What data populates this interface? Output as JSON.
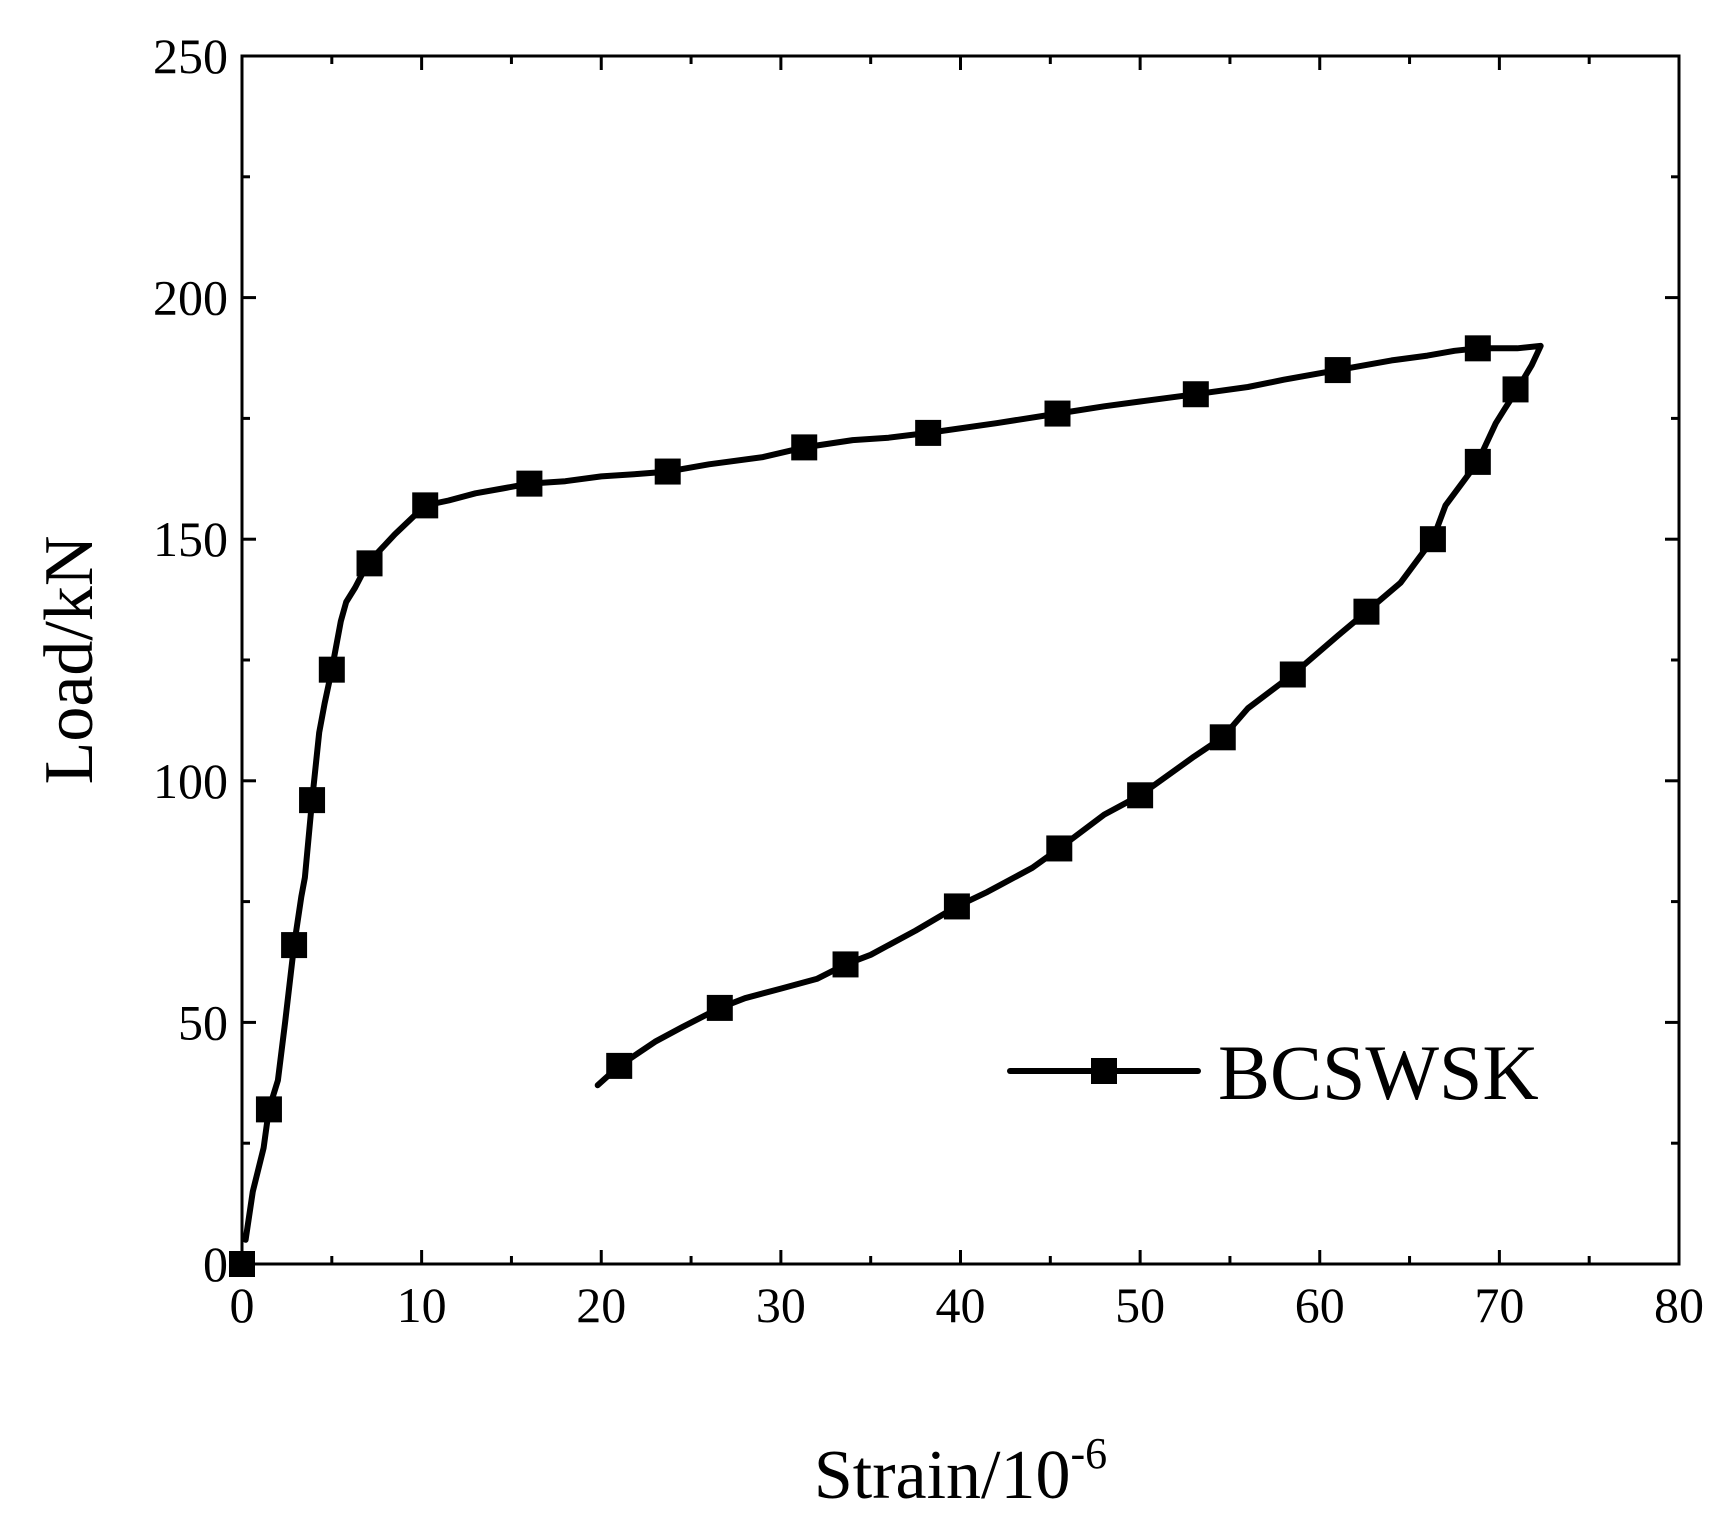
{
  "chart_data": {
    "type": "line",
    "title": "",
    "xlabel": "Strain/10",
    "xlabel_superscript": "-6",
    "ylabel": "Load/kN",
    "xlim": [
      0,
      80
    ],
    "ylim": [
      0,
      250
    ],
    "xticks": [
      "0",
      "10",
      "20",
      "30",
      "40",
      "50",
      "60",
      "70",
      "80"
    ],
    "yticks": [
      "0",
      "50",
      "100",
      "150",
      "200",
      "250"
    ],
    "grid": false,
    "legend_position": "bottom-right",
    "series": [
      {
        "name": "BCSWSK",
        "color": "#000000",
        "marker": "square",
        "line": [
          [
            0.2,
            5
          ],
          [
            0.6,
            15
          ],
          [
            1.2,
            24
          ],
          [
            1.5,
            32
          ],
          [
            2.0,
            38
          ],
          [
            2.4,
            50
          ],
          [
            2.9,
            66
          ],
          [
            3.3,
            76
          ],
          [
            3.5,
            80
          ],
          [
            3.9,
            96
          ],
          [
            4.3,
            110
          ],
          [
            4.6,
            116
          ],
          [
            5.0,
            123
          ],
          [
            5.5,
            133
          ],
          [
            5.8,
            137
          ],
          [
            6.3,
            140
          ],
          [
            7.0,
            145
          ],
          [
            7.5,
            147
          ],
          [
            8.5,
            151
          ],
          [
            10.2,
            157
          ],
          [
            11.5,
            158
          ],
          [
            13.0,
            159.5
          ],
          [
            14.5,
            160.5
          ],
          [
            16.0,
            161.5
          ],
          [
            18.0,
            162
          ],
          [
            20.0,
            163
          ],
          [
            22.0,
            163.5
          ],
          [
            23.7,
            164
          ],
          [
            26.0,
            165.5
          ],
          [
            29.0,
            167
          ],
          [
            31.3,
            169
          ],
          [
            34.0,
            170.5
          ],
          [
            36.0,
            171
          ],
          [
            38.2,
            172
          ],
          [
            42.0,
            174
          ],
          [
            45.4,
            176
          ],
          [
            48.0,
            177.5
          ],
          [
            50.0,
            178.5
          ],
          [
            53.1,
            180
          ],
          [
            56.0,
            181.5
          ],
          [
            58.0,
            183
          ],
          [
            61.0,
            185
          ],
          [
            64.0,
            187
          ],
          [
            66.0,
            188
          ],
          [
            67.5,
            189
          ],
          [
            68.8,
            189.5
          ],
          [
            71.0,
            189.5
          ],
          [
            72.3,
            190
          ],
          [
            71.8,
            186
          ],
          [
            71.0,
            181
          ],
          [
            70.3,
            177
          ],
          [
            69.8,
            174
          ],
          [
            68.8,
            166
          ],
          [
            68.0,
            162
          ],
          [
            67.0,
            157
          ],
          [
            66.3,
            150
          ],
          [
            64.5,
            141
          ],
          [
            62.6,
            135
          ],
          [
            61.0,
            130
          ],
          [
            58.5,
            122
          ],
          [
            56.0,
            115
          ],
          [
            54.6,
            109
          ],
          [
            53.0,
            105
          ],
          [
            50.0,
            97
          ],
          [
            48.0,
            93
          ],
          [
            45.5,
            86
          ],
          [
            44.0,
            82
          ],
          [
            41.5,
            77
          ],
          [
            39.8,
            74
          ],
          [
            37.5,
            69
          ],
          [
            35.0,
            64
          ],
          [
            33.6,
            62
          ],
          [
            32.0,
            59
          ],
          [
            30.0,
            57
          ],
          [
            28.0,
            55
          ],
          [
            26.6,
            53
          ],
          [
            24.5,
            49
          ],
          [
            23.0,
            46
          ],
          [
            21.0,
            41
          ],
          [
            19.8,
            37
          ]
        ],
        "markers": [
          [
            0,
            0
          ],
          [
            1.5,
            32
          ],
          [
            2.9,
            66
          ],
          [
            3.9,
            96
          ],
          [
            5.0,
            123
          ],
          [
            7.1,
            145
          ],
          [
            10.2,
            157
          ],
          [
            16.0,
            161.5
          ],
          [
            23.7,
            164
          ],
          [
            31.3,
            169
          ],
          [
            38.2,
            172
          ],
          [
            45.4,
            176
          ],
          [
            53.1,
            180
          ],
          [
            61.0,
            185
          ],
          [
            68.8,
            189.5
          ],
          [
            70.9,
            181
          ],
          [
            68.8,
            166
          ],
          [
            66.3,
            150
          ],
          [
            62.6,
            135
          ],
          [
            58.5,
            122
          ],
          [
            54.6,
            109
          ],
          [
            50.0,
            97
          ],
          [
            45.5,
            86
          ],
          [
            39.8,
            74
          ],
          [
            33.6,
            62
          ],
          [
            26.6,
            53
          ],
          [
            21.0,
            41
          ]
        ]
      }
    ]
  }
}
